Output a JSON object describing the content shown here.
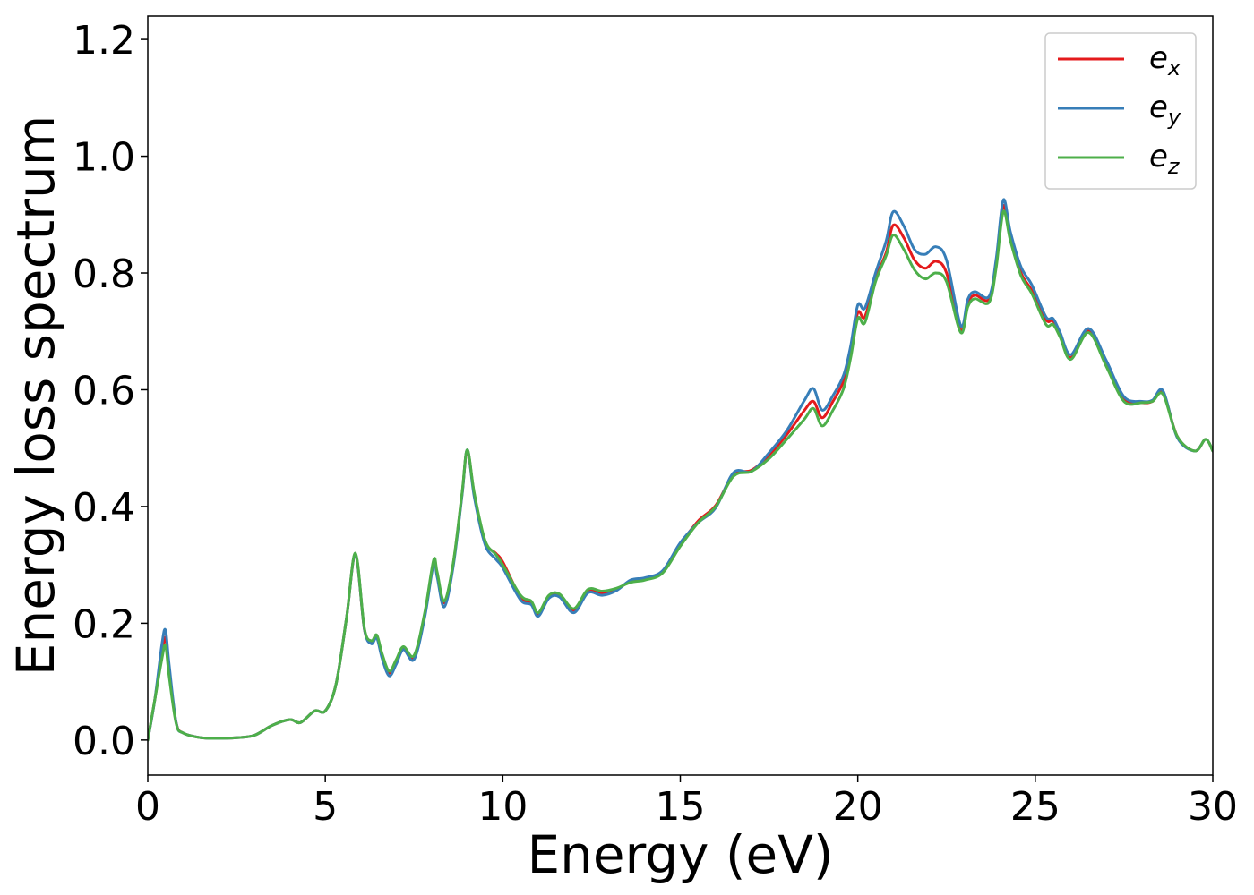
{
  "chart_data": {
    "type": "line",
    "title": "",
    "xlabel": "Energy (eV)",
    "ylabel": "Energy loss spectrum",
    "xlim": [
      0,
      30
    ],
    "ylim": [
      -0.06,
      1.24
    ],
    "grid": false,
    "legend_position": "top-right",
    "x_ticks": [
      0,
      5,
      10,
      15,
      20,
      25,
      30
    ],
    "x_tick_labels": [
      "0",
      "5",
      "10",
      "15",
      "20",
      "25",
      "30"
    ],
    "y_ticks": [
      0.0,
      0.2,
      0.4,
      0.6,
      0.8,
      1.0,
      1.2
    ],
    "y_tick_labels": [
      "0.0",
      "0.2",
      "0.4",
      "0.6",
      "0.8",
      "1.0",
      "1.2"
    ],
    "x": [
      0,
      0.2,
      0.4,
      0.5,
      0.6,
      0.8,
      1.0,
      1.5,
      2.0,
      2.5,
      3.0,
      3.5,
      4.0,
      4.3,
      4.7,
      5.0,
      5.3,
      5.6,
      5.85,
      6.1,
      6.3,
      6.45,
      6.6,
      6.8,
      7.0,
      7.2,
      7.5,
      7.8,
      8.05,
      8.15,
      8.35,
      8.6,
      8.85,
      9.0,
      9.2,
      9.5,
      9.8,
      10.0,
      10.5,
      10.8,
      11.0,
      11.3,
      11.6,
      12.0,
      12.4,
      12.8,
      13.2,
      13.6,
      14.0,
      14.5,
      15.0,
      15.5,
      16.0,
      16.5,
      17.0,
      17.5,
      18.0,
      18.5,
      18.75,
      19.0,
      19.3,
      19.6,
      19.8,
      20.0,
      20.2,
      20.5,
      20.8,
      21.0,
      21.3,
      21.6,
      21.9,
      22.2,
      22.5,
      22.9,
      23.1,
      23.3,
      23.7,
      23.9,
      24.1,
      24.3,
      24.6,
      24.9,
      25.3,
      25.5,
      25.7,
      26.0,
      26.5,
      27.0,
      27.5,
      28.0,
      28.3,
      28.6,
      29.0,
      29.5,
      29.8,
      30.0
    ],
    "series": [
      {
        "name": "e",
        "subscript": "x",
        "color": "#e41a1c",
        "values": [
          0.0,
          0.07,
          0.15,
          0.175,
          0.12,
          0.03,
          0.012,
          0.004,
          0.003,
          0.004,
          0.008,
          0.025,
          0.035,
          0.03,
          0.05,
          0.05,
          0.095,
          0.21,
          0.318,
          0.19,
          0.168,
          0.178,
          0.145,
          0.115,
          0.135,
          0.158,
          0.142,
          0.215,
          0.305,
          0.285,
          0.235,
          0.3,
          0.42,
          0.495,
          0.42,
          0.34,
          0.32,
          0.305,
          0.245,
          0.235,
          0.215,
          0.245,
          0.248,
          0.222,
          0.255,
          0.252,
          0.258,
          0.272,
          0.276,
          0.288,
          0.335,
          0.375,
          0.402,
          0.455,
          0.462,
          0.488,
          0.523,
          0.565,
          0.58,
          0.552,
          0.58,
          0.615,
          0.665,
          0.732,
          0.725,
          0.79,
          0.835,
          0.882,
          0.86,
          0.822,
          0.808,
          0.82,
          0.8,
          0.702,
          0.748,
          0.762,
          0.755,
          0.815,
          0.915,
          0.86,
          0.8,
          0.77,
          0.72,
          0.718,
          0.695,
          0.655,
          0.702,
          0.645,
          0.585,
          0.578,
          0.58,
          0.595,
          0.52,
          0.495,
          0.515,
          0.495
        ]
      },
      {
        "name": "e",
        "subscript": "y",
        "color": "#377eb8",
        "values": [
          0.0,
          0.07,
          0.165,
          0.188,
          0.13,
          0.03,
          0.012,
          0.004,
          0.003,
          0.004,
          0.008,
          0.025,
          0.035,
          0.03,
          0.05,
          0.05,
          0.095,
          0.21,
          0.318,
          0.19,
          0.165,
          0.175,
          0.14,
          0.11,
          0.13,
          0.155,
          0.138,
          0.21,
          0.302,
          0.28,
          0.228,
          0.296,
          0.418,
          0.497,
          0.415,
          0.335,
          0.31,
          0.295,
          0.24,
          0.232,
          0.212,
          0.243,
          0.245,
          0.218,
          0.252,
          0.248,
          0.256,
          0.274,
          0.278,
          0.29,
          0.338,
          0.372,
          0.398,
          0.458,
          0.46,
          0.492,
          0.53,
          0.582,
          0.602,
          0.565,
          0.59,
          0.625,
          0.675,
          0.745,
          0.74,
          0.8,
          0.855,
          0.905,
          0.88,
          0.84,
          0.832,
          0.845,
          0.822,
          0.71,
          0.755,
          0.768,
          0.76,
          0.825,
          0.925,
          0.87,
          0.81,
          0.78,
          0.725,
          0.722,
          0.698,
          0.66,
          0.705,
          0.65,
          0.588,
          0.58,
          0.582,
          0.598,
          0.518,
          0.495,
          0.515,
          0.495
        ]
      },
      {
        "name": "e",
        "subscript": "z",
        "color": "#4daf4a",
        "values": [
          0.0,
          0.07,
          0.14,
          0.162,
          0.11,
          0.028,
          0.012,
          0.004,
          0.003,
          0.004,
          0.008,
          0.025,
          0.035,
          0.03,
          0.05,
          0.05,
          0.095,
          0.21,
          0.32,
          0.192,
          0.17,
          0.18,
          0.148,
          0.118,
          0.138,
          0.16,
          0.145,
          0.218,
          0.308,
          0.288,
          0.238,
          0.302,
          0.422,
          0.497,
          0.422,
          0.342,
          0.318,
          0.3,
          0.248,
          0.238,
          0.218,
          0.248,
          0.25,
          0.225,
          0.258,
          0.255,
          0.26,
          0.27,
          0.274,
          0.286,
          0.332,
          0.372,
          0.4,
          0.452,
          0.46,
          0.482,
          0.515,
          0.55,
          0.568,
          0.538,
          0.565,
          0.602,
          0.655,
          0.722,
          0.715,
          0.785,
          0.83,
          0.865,
          0.84,
          0.805,
          0.79,
          0.8,
          0.785,
          0.698,
          0.742,
          0.756,
          0.75,
          0.81,
          0.905,
          0.855,
          0.795,
          0.765,
          0.712,
          0.712,
          0.69,
          0.652,
          0.698,
          0.64,
          0.58,
          0.578,
          0.58,
          0.592,
          0.52,
          0.495,
          0.515,
          0.495
        ]
      }
    ]
  }
}
